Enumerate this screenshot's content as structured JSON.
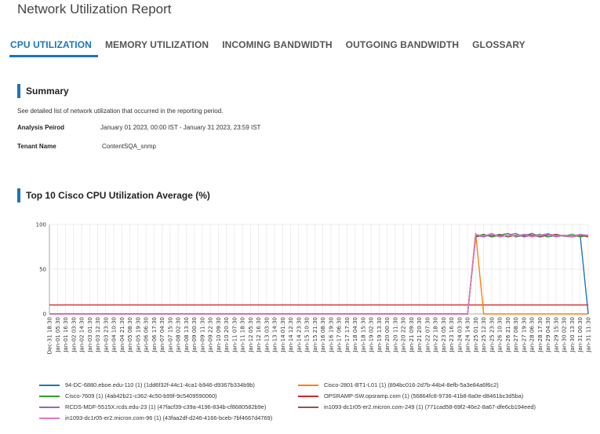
{
  "report": {
    "title": "Network Utilization Report"
  },
  "tabs": [
    {
      "label": "CPU UTILIZATION",
      "active": true
    },
    {
      "label": "MEMORY UTILIZATION",
      "active": false
    },
    {
      "label": "INCOMING BANDWIDTH",
      "active": false
    },
    {
      "label": "OUTGOING BANDWIDTH",
      "active": false
    },
    {
      "label": "GLOSSARY",
      "active": false
    }
  ],
  "summary": {
    "title": "Summary",
    "description": "See detailed list of network utilization that occurred in the reporting period.",
    "period_label": "Analysis Peirod",
    "period_value": "January 01 2023, 00:00 IST - January 31 2023, 23:59 IST",
    "tenant_label": "Tenant Name",
    "tenant_value": "ContentSQA_snmp"
  },
  "chart_section": {
    "title": "Top 10 Cisco CPU Utilization Average (%)"
  },
  "chart_data": {
    "type": "line",
    "title": "Top 10 Cisco CPU Utilization Average (%)",
    "xlabel": "",
    "ylabel": "",
    "ylim": [
      0,
      100
    ],
    "yticks": [
      0,
      50,
      100
    ],
    "x": [
      "Dec-31 18:30",
      "Jan-01 05:30",
      "Jan-01 16:30",
      "Jan-02 03:30",
      "Jan-02 14:30",
      "Jan-03 01:30",
      "Jan-03 12:30",
      "Jan-03 23:30",
      "Jan-04 10:30",
      "Jan-04 21:30",
      "Jan-05 08:30",
      "Jan-05 19:30",
      "Jan-06 06:30",
      "Jan-06 17:30",
      "Jan-07 04:30",
      "Jan-07 15:30",
      "Jan-08 02:30",
      "Jan-08 13:30",
      "Jan-09 00:30",
      "Jan-09 11:30",
      "Jan-09 22:30",
      "Jan-10 09:30",
      "Jan-10 20:30",
      "Jan-11 07:30",
      "Jan-11 18:30",
      "Jan-12 05:30",
      "Jan-12 16:30",
      "Jan-13 03:30",
      "Jan-13 14:30",
      "Jan-14 01:30",
      "Jan-14 12:30",
      "Jan-14 23:30",
      "Jan-15 10:30",
      "Jan-15 21:30",
      "Jan-16 08:30",
      "Jan-16 19:30",
      "Jan-17 06:30",
      "Jan-17 17:30",
      "Jan-18 04:30",
      "Jan-18 15:30",
      "Jan-19 02:30",
      "Jan-19 13:30",
      "Jan-20 00:30",
      "Jan-20 11:30",
      "Jan-20 22:30",
      "Jan-21 09:30",
      "Jan-21 20:30",
      "Jan-22 07:30",
      "Jan-22 18:30",
      "Jan-23 05:30",
      "Jan-23 16:30",
      "Jan-24 03:30",
      "Jan-24 14:30",
      "Jan-25 01:30",
      "Jan-25 12:30",
      "Jan-25 23:30",
      "Jan-26 10:30",
      "Jan-26 21:30",
      "Jan-27 08:30",
      "Jan-27 19:30",
      "Jan-28 06:30",
      "Jan-28 17:30",
      "Jan-29 04:30",
      "Jan-29 15:30",
      "Jan-30 02:30",
      "Jan-30 13:30",
      "Jan-31 00:30",
      "Jan-31 11:30"
    ],
    "series": [
      {
        "name": "94-DC-6880.eboe.edu-110 (1) (1dd6f32f-44c1-4ca1-b946-d9367b334b9b)",
        "color": "#1f77b4",
        "values": [
          0,
          0,
          0,
          0,
          0,
          0,
          0,
          0,
          0,
          0,
          0,
          0,
          0,
          0,
          0,
          0,
          0,
          0,
          0,
          0,
          0,
          0,
          0,
          0,
          0,
          0,
          0,
          0,
          0,
          0,
          0,
          0,
          0,
          0,
          0,
          0,
          0,
          0,
          0,
          0,
          0,
          0,
          0,
          0,
          0,
          0,
          0,
          0,
          0,
          0,
          0,
          0,
          0,
          88,
          87,
          89,
          86,
          88,
          87,
          89,
          88,
          86,
          89,
          87,
          88,
          86,
          88,
          0
        ]
      },
      {
        "name": "Cisco-2801-BT1-L01 (1) (894bc016-2d7b-44b4-8efb-5a3e84a6f6c2)",
        "color": "#ff7f0e",
        "values": [
          0,
          0,
          0,
          0,
          0,
          0,
          0,
          0,
          0,
          0,
          0,
          0,
          0,
          0,
          0,
          0,
          0,
          0,
          0,
          0,
          0,
          0,
          0,
          0,
          0,
          0,
          0,
          0,
          0,
          0,
          0,
          0,
          0,
          0,
          0,
          0,
          0,
          0,
          0,
          0,
          0,
          0,
          0,
          0,
          0,
          0,
          0,
          0,
          0,
          0,
          0,
          0,
          0,
          90,
          0,
          0,
          0,
          0,
          0,
          0,
          0,
          0,
          0,
          0,
          0,
          0,
          0,
          0
        ]
      },
      {
        "name": "Cisco-7609 (1) (4ab42b21-c362-4c50-b99f-9c5409590060)",
        "color": "#2ca02c",
        "values": [
          0,
          0,
          0,
          0,
          0,
          0,
          0,
          0,
          0,
          0,
          0,
          0,
          0,
          0,
          0,
          0,
          0,
          0,
          0,
          0,
          0,
          0,
          0,
          0,
          0,
          0,
          0,
          0,
          0,
          0,
          0,
          0,
          0,
          0,
          0,
          0,
          0,
          0,
          0,
          0,
          0,
          0,
          0,
          0,
          0,
          0,
          0,
          0,
          0,
          0,
          0,
          0,
          0,
          87,
          89,
          86,
          88,
          90,
          86,
          88,
          87,
          89,
          86,
          88,
          87,
          89,
          86,
          88
        ]
      },
      {
        "name": "OPSRAMP-SW.opsramp.com (1) (56864fc8-9736-41b8-8a0e-d8461bc3d5ba)",
        "color": "#d62728",
        "values": [
          10,
          10,
          10,
          10,
          10,
          10,
          10,
          10,
          10,
          10,
          10,
          10,
          10,
          10,
          10,
          10,
          10,
          10,
          10,
          10,
          10,
          10,
          10,
          10,
          10,
          10,
          10,
          10,
          10,
          10,
          10,
          10,
          10,
          10,
          10,
          10,
          10,
          10,
          10,
          10,
          10,
          10,
          10,
          10,
          10,
          10,
          10,
          10,
          10,
          10,
          10,
          10,
          10,
          10,
          10,
          10,
          10,
          10,
          10,
          10,
          10,
          10,
          10,
          10,
          10,
          10,
          10,
          10
        ]
      },
      {
        "name": "RCDS-MDF-5515X.rcds.edu-23 (1) (47facf39-c39a-4196-834b-cf8680582b9e)",
        "color": "#9467bd",
        "values": [
          0,
          0,
          0,
          0,
          0,
          0,
          0,
          0,
          0,
          0,
          0,
          0,
          0,
          0,
          0,
          0,
          0,
          0,
          0,
          0,
          0,
          0,
          0,
          0,
          0,
          0,
          0,
          0,
          0,
          0,
          0,
          0,
          0,
          0,
          0,
          0,
          0,
          0,
          0,
          0,
          0,
          0,
          0,
          0,
          0,
          0,
          0,
          0,
          0,
          0,
          0,
          0,
          0,
          88,
          86,
          89,
          87,
          88,
          90,
          86,
          88,
          87,
          89,
          86,
          88,
          87,
          89,
          87
        ]
      },
      {
        "name": "in1093-dc1r05-er2.micron.com-249 (1) (771cad58-69f2-46e2-8a67-dfe6cb194eed)",
        "color": "#8c564b",
        "values": [
          0,
          0,
          0,
          0,
          0,
          0,
          0,
          0,
          0,
          0,
          0,
          0,
          0,
          0,
          0,
          0,
          0,
          0,
          0,
          0,
          0,
          0,
          0,
          0,
          0,
          0,
          0,
          0,
          0,
          0,
          0,
          0,
          0,
          0,
          0,
          0,
          0,
          0,
          0,
          0,
          0,
          0,
          0,
          0,
          0,
          0,
          0,
          0,
          0,
          0,
          0,
          0,
          0,
          86,
          88,
          87,
          89,
          86,
          88,
          87,
          90,
          86,
          88,
          89,
          87,
          86,
          88,
          86
        ]
      },
      {
        "name": "in1093-dc1r05-er2.micron.com-96 (1) (43faa2df-d246-4166-bceb-7bf4667d4769)",
        "color": "#e377c2",
        "values": [
          0,
          0,
          0,
          0,
          0,
          0,
          0,
          0,
          0,
          0,
          0,
          0,
          0,
          0,
          0,
          0,
          0,
          0,
          0,
          0,
          0,
          0,
          0,
          0,
          0,
          0,
          0,
          0,
          0,
          0,
          0,
          0,
          0,
          0,
          0,
          0,
          0,
          0,
          0,
          0,
          0,
          0,
          0,
          0,
          0,
          0,
          0,
          0,
          0,
          0,
          0,
          0,
          0,
          89,
          87,
          90,
          86,
          88,
          87,
          89,
          86,
          88,
          90,
          87,
          88,
          86,
          89,
          88
        ]
      }
    ],
    "grid": true,
    "legend_position": "bottom"
  }
}
